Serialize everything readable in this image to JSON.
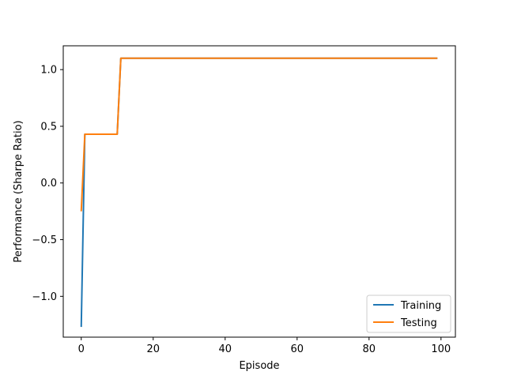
{
  "chart_data": {
    "type": "line",
    "title": "",
    "xlabel": "Episode",
    "ylabel": "Performance (Sharpe Ratio)",
    "xlim": [
      -5,
      104
    ],
    "ylim": [
      -1.36,
      1.21
    ],
    "xticks": [
      0,
      20,
      40,
      60,
      80,
      100
    ],
    "yticks": [
      -1.0,
      -0.5,
      0.0,
      0.5,
      1.0
    ],
    "xtick_labels": [
      "0",
      "20",
      "40",
      "60",
      "80",
      "100"
    ],
    "ytick_labels": [
      "−1.0",
      "−0.5",
      "0.0",
      "0.5",
      "1.0"
    ],
    "grid": false,
    "legend_position": "lower-right",
    "series": [
      {
        "name": "Training",
        "color": "#1f77b4",
        "x": [
          0,
          1,
          10,
          11,
          99
        ],
        "y": [
          -1.27,
          0.43,
          0.43,
          1.1,
          1.1
        ]
      },
      {
        "name": "Testing",
        "color": "#ff7f0e",
        "x": [
          0,
          1,
          10,
          11,
          99
        ],
        "y": [
          -0.25,
          0.43,
          0.43,
          1.1,
          1.1
        ]
      }
    ]
  }
}
